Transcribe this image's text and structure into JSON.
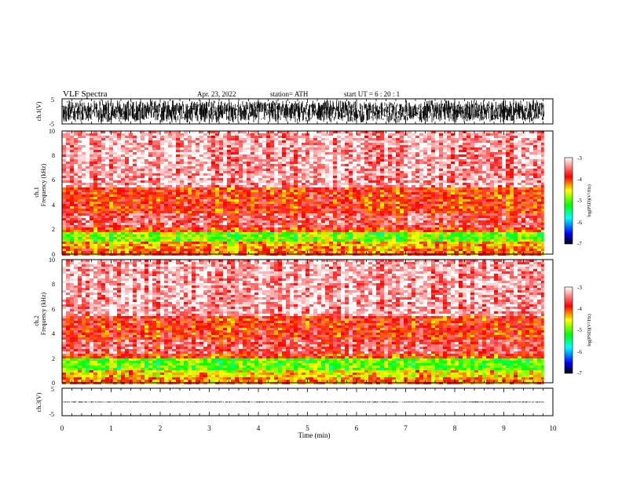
{
  "header": {
    "title": "VLF  Spectra",
    "date": "Apr. 23, 2022",
    "station": "station= ATH",
    "start": "start  UT  =   6  : 20 : 1"
  },
  "chart_data": [
    {
      "type": "line",
      "panel": "ch1",
      "ylabel": "ch.1(V)",
      "ylim": [
        -5,
        5
      ],
      "yticks": [
        "5",
        "-5"
      ],
      "xlim": [
        0,
        10
      ],
      "description_values": {
        "amplitude_envelope": [
          -4.5,
          4.5
        ]
      }
    },
    {
      "type": "heatmap",
      "panel": "ch1-spectrogram",
      "ylabel_lines": [
        "ch.1",
        "Frequency  (kHz)"
      ],
      "ylim": [
        0,
        10
      ],
      "yticks": [
        "0",
        "2",
        "4",
        "6",
        "8",
        "10"
      ],
      "xlim": [
        0,
        10
      ],
      "data_end_min": 9.82,
      "bands_khz": [
        {
          "from": 0,
          "to": 0.5,
          "level": -4.1
        },
        {
          "from": 0.5,
          "to": 1.1,
          "level": -4.3
        },
        {
          "from": 1.1,
          "to": 1.8,
          "level": -4.9
        },
        {
          "from": 1.8,
          "to": 2.2,
          "level": -4.0
        },
        {
          "from": 2.2,
          "to": 3.5,
          "level": -3.6
        },
        {
          "from": 3.5,
          "to": 5.5,
          "level": -3.9
        },
        {
          "from": 5.5,
          "to": 10,
          "level": -3.3
        }
      ],
      "colorbar": {
        "label": "log(PSD)(V²/Hz)",
        "range": [
          -7,
          -3
        ],
        "ticks": [
          "-3",
          "-4",
          "-5",
          "-6",
          "-7"
        ]
      }
    },
    {
      "type": "heatmap",
      "panel": "ch2-spectrogram",
      "ylabel_lines": [
        "ch.2",
        "Frequency  (kHz)"
      ],
      "ylim": [
        0,
        10
      ],
      "yticks": [
        "0",
        "2",
        "4",
        "6",
        "8",
        "10"
      ],
      "xlim": [
        0,
        10
      ],
      "data_end_min": 9.82,
      "bands_khz": [
        {
          "from": 0,
          "to": 0.5,
          "level": -4.2
        },
        {
          "from": 0.5,
          "to": 1.1,
          "level": -4.5
        },
        {
          "from": 1.1,
          "to": 2.0,
          "level": -5.0
        },
        {
          "from": 2.0,
          "to": 2.4,
          "level": -4.0
        },
        {
          "from": 2.4,
          "to": 3.6,
          "level": -3.6
        },
        {
          "from": 3.6,
          "to": 5.5,
          "level": -3.9
        },
        {
          "from": 5.5,
          "to": 10,
          "level": -3.3
        }
      ],
      "colorbar": {
        "label": "log(PSD)(V²/Hz)",
        "range": [
          -7,
          -3
        ],
        "ticks": [
          "-3",
          "-4",
          "-5",
          "-6",
          "-7"
        ]
      }
    },
    {
      "type": "line",
      "panel": "ch3",
      "ylabel": "ch.3(V)",
      "ylim": [
        -5,
        5
      ],
      "yticks": [
        "5",
        "-5"
      ],
      "xlim": [
        0,
        10
      ],
      "description_values": {
        "amplitude_envelope": [
          -0.2,
          0.2
        ]
      }
    }
  ],
  "xaxis": {
    "label": "Time  (min)",
    "ticks": [
      "0",
      "1",
      "2",
      "3",
      "4",
      "5",
      "6",
      "7",
      "8",
      "9",
      "10"
    ]
  },
  "colors": {
    "colormap": [
      "#000000",
      "#0000ff",
      "#00ffff",
      "#00ff00",
      "#ffff00",
      "#ff0000",
      "#ffffff"
    ]
  }
}
